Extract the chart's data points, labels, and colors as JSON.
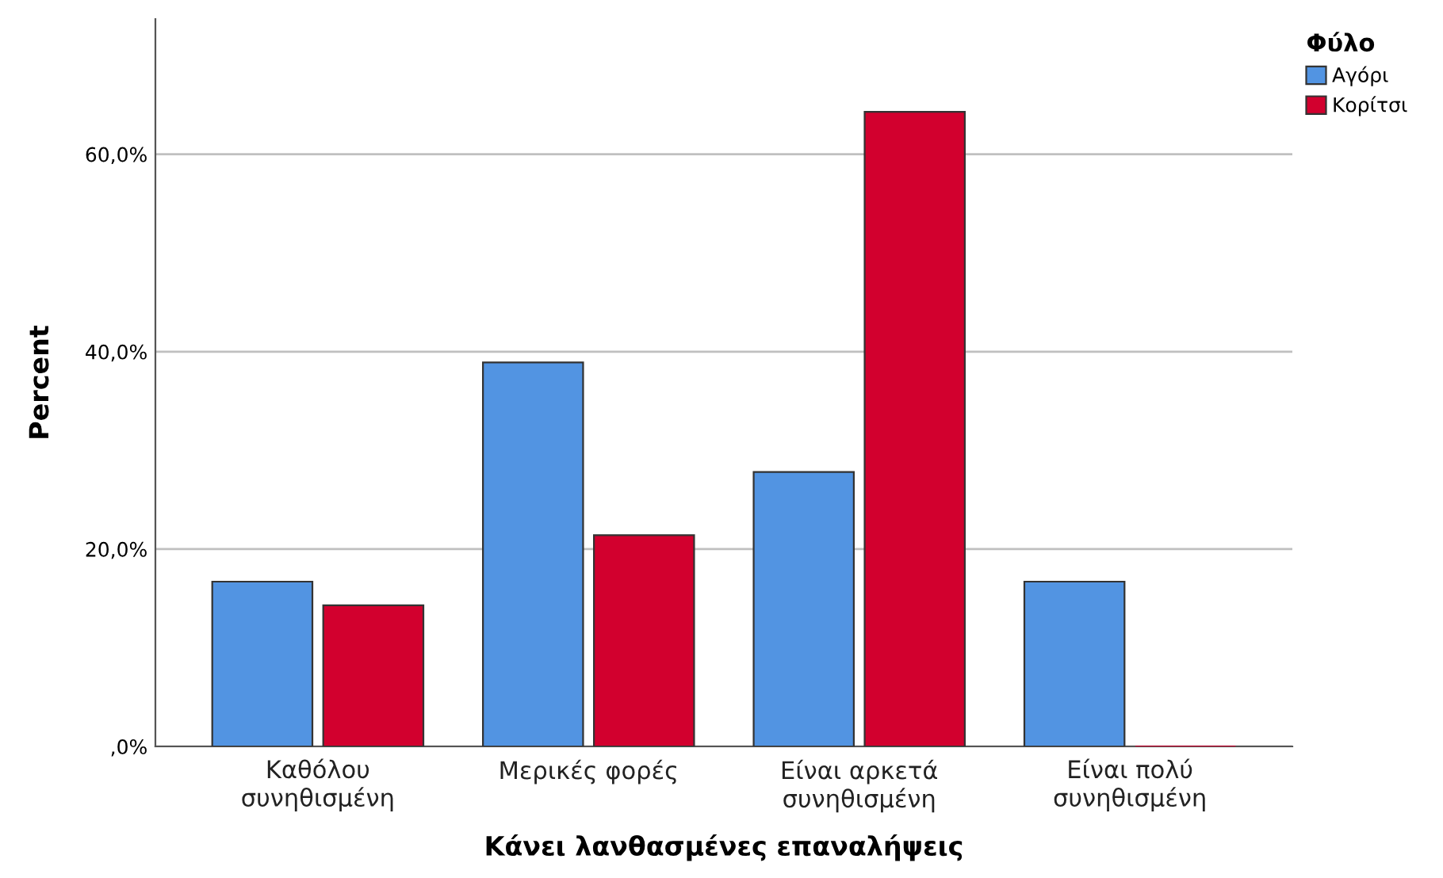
{
  "chart_data": {
    "type": "bar",
    "xlabel": "Κάνει λανθασμένες επαναλήψεις",
    "ylabel": "Percent",
    "legend_title": "Φύλο",
    "categories": [
      "Καθόλου\nσυνηθισμένη",
      "Μερικές φορές",
      "Είναι αρκετά\nσυνηθισμένη",
      "Είναι πολύ\nσυνηθισμένη"
    ],
    "series": [
      {
        "name": "Αγόρι",
        "color": "#5294e2",
        "values": [
          16.7,
          38.9,
          27.8,
          16.7
        ]
      },
      {
        "name": "Κορίτσι",
        "color": "#d2002e",
        "values": [
          14.3,
          21.4,
          64.3,
          0
        ]
      }
    ],
    "ylim": [
      0,
      73.7
    ],
    "yticks": [
      {
        "value": 0,
        "label": ",0%"
      },
      {
        "value": 20,
        "label": "20,0%"
      },
      {
        "value": 40,
        "label": "40,0%"
      },
      {
        "value": 60,
        "label": "60,0%"
      }
    ],
    "grid": "y",
    "legend": "top right"
  }
}
